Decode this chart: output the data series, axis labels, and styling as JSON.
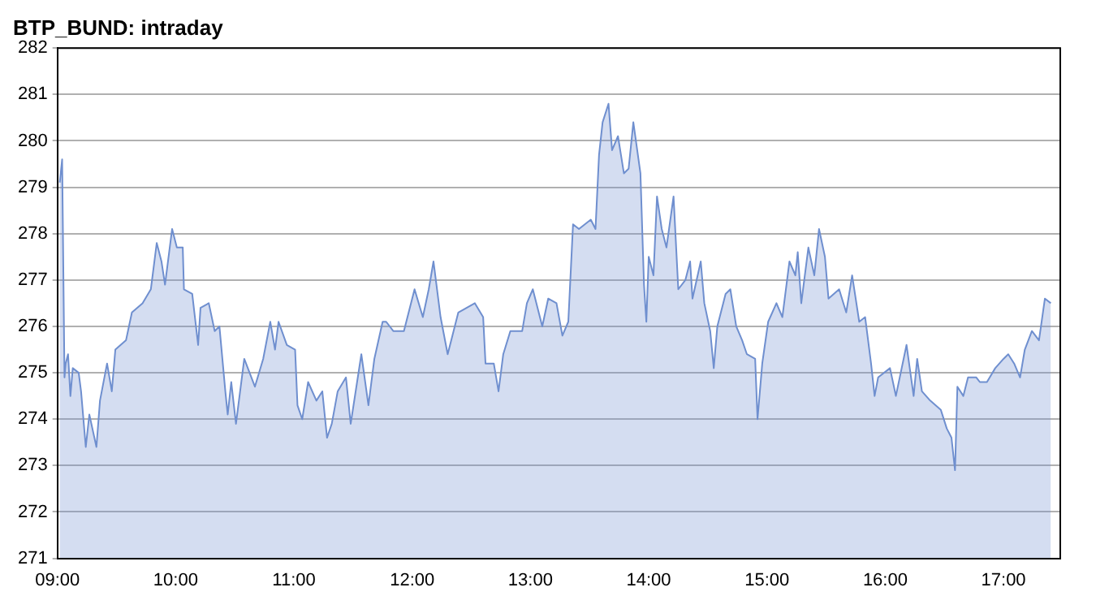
{
  "chart_data": {
    "type": "area",
    "title": "BTP_BUND: intraday",
    "xlim": [
      9,
      17.48
    ],
    "xticks": [
      {
        "value": 9,
        "label": "09:00"
      },
      {
        "value": 10,
        "label": "10:00"
      },
      {
        "value": 11,
        "label": "11:00"
      },
      {
        "value": 12,
        "label": "12:00"
      },
      {
        "value": 13,
        "label": "13:00"
      },
      {
        "value": 14,
        "label": "14:00"
      },
      {
        "value": 15,
        "label": "15:00"
      },
      {
        "value": 16,
        "label": "16:00"
      },
      {
        "value": 17,
        "label": "17:00"
      }
    ],
    "ylim": [
      271,
      282
    ],
    "yticks": [
      271,
      272,
      273,
      274,
      275,
      276,
      277,
      278,
      279,
      280,
      281,
      282
    ],
    "grid": "y",
    "legend": false,
    "marker": "none",
    "line_style": "solid",
    "series": [
      {
        "color": "#6f8fcf",
        "x": [
          9.02,
          9.04,
          9.06,
          9.07,
          9.09,
          9.11,
          9.13,
          9.18,
          9.2,
          9.24,
          9.27,
          9.33,
          9.36,
          9.42,
          9.46,
          9.49,
          9.58,
          9.63,
          9.72,
          9.79,
          9.84,
          9.88,
          9.91,
          9.97,
          10.01,
          10.06,
          10.07,
          10.14,
          10.19,
          10.21,
          10.28,
          10.33,
          10.37,
          10.42,
          10.44,
          10.47,
          10.51,
          10.58,
          10.67,
          10.74,
          10.8,
          10.84,
          10.87,
          10.94,
          11.01,
          11.03,
          11.07,
          11.12,
          11.19,
          11.24,
          11.28,
          11.32,
          11.37,
          11.44,
          11.48,
          11.57,
          11.63,
          11.68,
          11.75,
          11.78,
          11.84,
          11.93,
          12.02,
          12.09,
          12.14,
          12.18,
          12.24,
          12.3,
          12.34,
          12.39,
          12.46,
          12.53,
          12.6,
          12.62,
          12.69,
          12.73,
          12.77,
          12.83,
          12.93,
          12.97,
          13.02,
          13.1,
          13.15,
          13.22,
          13.27,
          13.32,
          13.36,
          13.41,
          13.51,
          13.55,
          13.58,
          13.61,
          13.66,
          13.69,
          13.74,
          13.79,
          13.83,
          13.87,
          13.93,
          13.96,
          13.98,
          14.0,
          14.04,
          14.07,
          14.11,
          14.15,
          14.21,
          14.25,
          14.31,
          14.35,
          14.37,
          14.44,
          14.47,
          14.52,
          14.55,
          14.58,
          14.65,
          14.69,
          14.74,
          14.79,
          14.83,
          14.9,
          14.92,
          14.96,
          15.01,
          15.08,
          15.13,
          15.19,
          15.24,
          15.26,
          15.29,
          15.35,
          15.4,
          15.44,
          15.49,
          15.52,
          15.61,
          15.67,
          15.72,
          15.78,
          15.83,
          15.88,
          15.91,
          15.94,
          16.04,
          16.09,
          16.18,
          16.24,
          16.27,
          16.31,
          16.38,
          16.47,
          16.52,
          16.56,
          16.59,
          16.61,
          16.66,
          16.7,
          16.77,
          16.8,
          16.86,
          16.93,
          17.0,
          17.04,
          17.09,
          17.14,
          17.18,
          17.24,
          17.3,
          17.35,
          17.4
        ],
        "values": [
          279.1,
          279.6,
          274.9,
          275.2,
          275.4,
          274.5,
          275.1,
          275.0,
          274.6,
          273.4,
          274.1,
          273.4,
          274.4,
          275.2,
          274.6,
          275.5,
          275.7,
          276.3,
          276.5,
          276.8,
          277.8,
          277.4,
          276.9,
          278.1,
          277.7,
          277.7,
          276.8,
          276.7,
          275.6,
          276.4,
          276.5,
          275.9,
          276.0,
          274.6,
          274.1,
          274.8,
          273.9,
          275.3,
          274.7,
          275.3,
          276.1,
          275.5,
          276.1,
          275.6,
          275.5,
          274.3,
          274.0,
          274.8,
          274.4,
          274.6,
          273.6,
          273.9,
          274.6,
          274.9,
          273.9,
          275.4,
          274.3,
          275.3,
          276.1,
          276.1,
          275.9,
          275.9,
          276.8,
          276.2,
          276.8,
          277.4,
          276.2,
          275.4,
          275.8,
          276.3,
          276.4,
          276.5,
          276.2,
          275.2,
          275.2,
          274.6,
          275.4,
          275.9,
          275.9,
          276.5,
          276.8,
          276.0,
          276.6,
          276.5,
          275.8,
          276.1,
          278.2,
          278.1,
          278.3,
          278.1,
          279.7,
          280.4,
          280.8,
          279.8,
          280.1,
          279.3,
          279.4,
          280.4,
          279.3,
          276.9,
          276.1,
          277.5,
          277.1,
          278.8,
          278.1,
          277.7,
          278.8,
          276.8,
          277.0,
          277.4,
          276.6,
          277.4,
          276.5,
          275.9,
          275.1,
          276.0,
          276.7,
          276.8,
          276.0,
          275.7,
          275.4,
          275.3,
          274.0,
          275.2,
          276.1,
          276.5,
          276.2,
          277.4,
          277.1,
          277.6,
          276.5,
          277.7,
          277.1,
          278.1,
          277.5,
          276.6,
          276.8,
          276.3,
          277.1,
          276.1,
          276.2,
          275.2,
          274.5,
          274.9,
          275.1,
          274.5,
          275.6,
          274.5,
          275.3,
          274.6,
          274.4,
          274.2,
          273.8,
          273.6,
          272.9,
          274.7,
          274.5,
          274.9,
          274.9,
          274.8,
          274.8,
          275.1,
          275.3,
          275.4,
          275.2,
          274.9,
          275.5,
          275.9,
          275.7,
          276.6,
          276.5
        ]
      }
    ]
  }
}
